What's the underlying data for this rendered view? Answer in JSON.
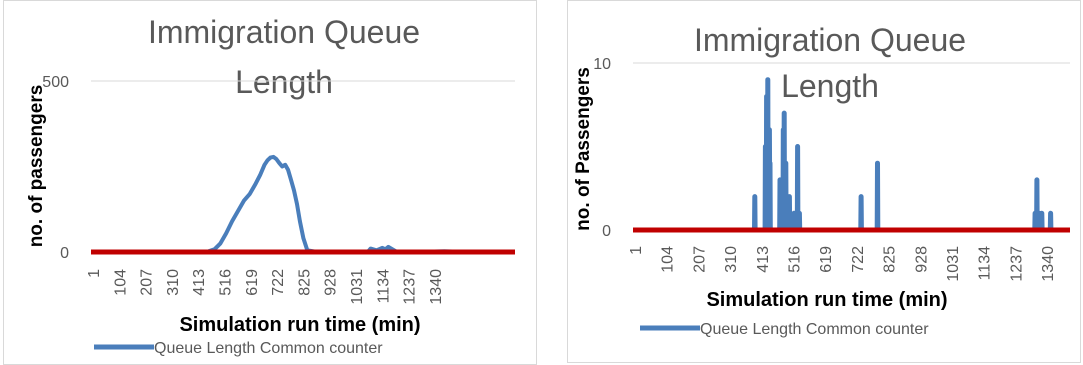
{
  "chart_data": [
    {
      "type": "line",
      "title": "Immigration Queue Length",
      "title_lines": [
        "Immigration Queue",
        "Length"
      ],
      "xlabel": "Simulation run time (min)",
      "ylabel": "no. of passengers",
      "ylim": [
        0,
        500
      ],
      "yticks": [
        0,
        500
      ],
      "xlim": [
        1,
        1440
      ],
      "x_tick_labels": [
        "1",
        "104",
        "207",
        "310",
        "413",
        "516",
        "619",
        "722",
        "825",
        "928",
        "1031",
        "1134",
        "1237",
        "1340"
      ],
      "grid": true,
      "legend_position": "bottom",
      "baseline": {
        "y": 0,
        "color": "#c00000"
      },
      "series": [
        {
          "name": "Queue Length Common counter",
          "color": "#4a7ebb",
          "x": [
            380,
            400,
            420,
            440,
            460,
            480,
            500,
            520,
            540,
            560,
            575,
            590,
            600,
            610,
            620,
            630,
            640,
            650,
            660,
            670,
            680,
            690,
            700,
            710,
            722,
            735,
            770,
            800,
            900,
            940,
            950,
            970,
            990,
            1000,
            1010,
            1030,
            1040,
            1100,
            1200,
            1280,
            1300
          ],
          "y": [
            0,
            2,
            8,
            25,
            55,
            90,
            120,
            150,
            170,
            200,
            225,
            255,
            268,
            276,
            278,
            272,
            260,
            250,
            255,
            240,
            210,
            180,
            140,
            90,
            40,
            5,
            0,
            0,
            0,
            0,
            10,
            5,
            12,
            8,
            15,
            5,
            0,
            0,
            2,
            0,
            0
          ]
        }
      ]
    },
    {
      "type": "line",
      "title": "Immigration Queue Length",
      "title_lines": [
        "Immigration Queue",
        "Length"
      ],
      "xlabel": "Simulation run time (min)",
      "ylabel": "no. of Passengers",
      "ylim": [
        0,
        10
      ],
      "yticks": [
        0,
        10
      ],
      "xlim": [
        1,
        1440
      ],
      "x_tick_labels": [
        "1",
        "104",
        "207",
        "310",
        "413",
        "516",
        "619",
        "722",
        "825",
        "928",
        "1031",
        "1134",
        "1237",
        "1340"
      ],
      "grid": true,
      "legend_position": "bottom",
      "baseline": {
        "y": 0,
        "color": "#c00000"
      },
      "series": [
        {
          "name": "Queue Length Common counter",
          "color": "#4a7ebb",
          "x": [
            401,
            402,
            403,
            436,
            437,
            438,
            440,
            441,
            442,
            444,
            445,
            446,
            449,
            450,
            451,
            451,
            452,
            453,
            484,
            485,
            486,
            495,
            496,
            497,
            498,
            499,
            500,
            503,
            504,
            505,
            507,
            508,
            509,
            515,
            516,
            517,
            530,
            531,
            535,
            536,
            537,
            542,
            543,
            544,
            548,
            549,
            550,
            751,
            752,
            753,
            805,
            806,
            807,
            1324,
            1325,
            1326,
            1330,
            1331,
            1332,
            1338,
            1339,
            1340,
            1346,
            1347,
            1348,
            1375,
            1376,
            1377
          ],
          "y": [
            0,
            2,
            0,
            0,
            5,
            0,
            0,
            8,
            0,
            0,
            9,
            0,
            0,
            6,
            2,
            0,
            4,
            0,
            0,
            3,
            0,
            0,
            6,
            0,
            0,
            7,
            0,
            0,
            4,
            0,
            0,
            2,
            0,
            0,
            2,
            0,
            0,
            1,
            0,
            1,
            0,
            0,
            5,
            0,
            0,
            1,
            0,
            0,
            2,
            0,
            0,
            4,
            0,
            0,
            1,
            0,
            0,
            3,
            0,
            0,
            1,
            0,
            0,
            1,
            0,
            0,
            1,
            0
          ]
        }
      ]
    }
  ]
}
